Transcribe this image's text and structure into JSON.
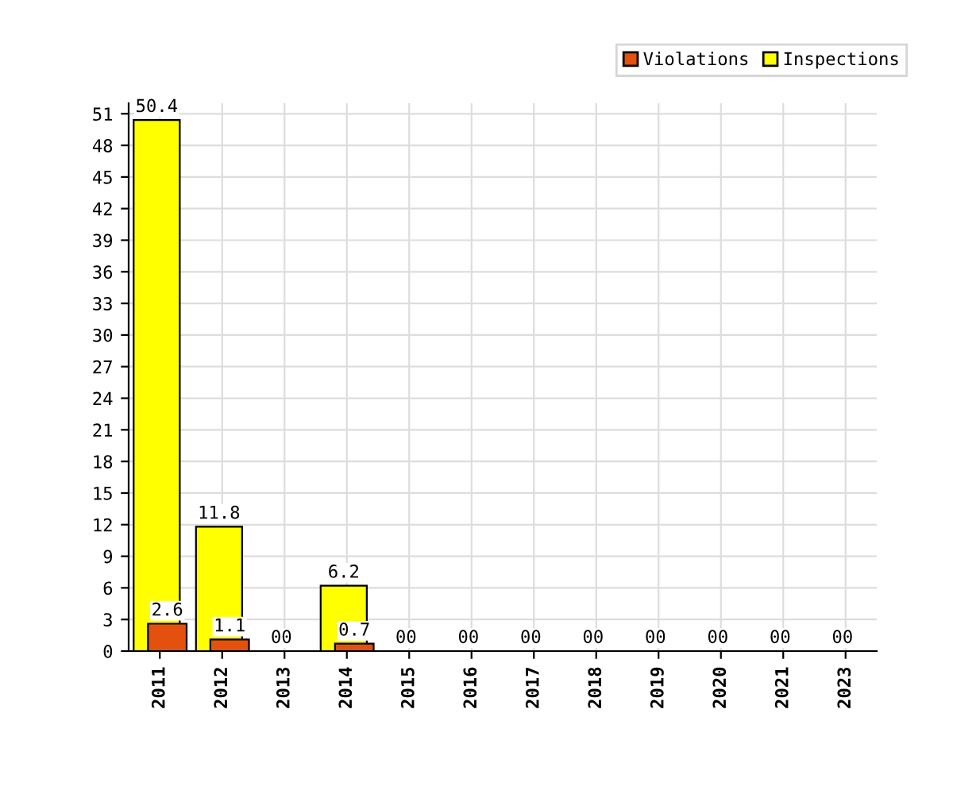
{
  "chart_data": {
    "type": "bar",
    "categories": [
      "2011",
      "2012",
      "2013",
      "2014",
      "2015",
      "2016",
      "2017",
      "2018",
      "2019",
      "2020",
      "2021",
      "2023"
    ],
    "series": [
      {
        "name": "Violations",
        "color": "#e4500e",
        "values": [
          2.6,
          1.1,
          0,
          0.7,
          0,
          0,
          0,
          0,
          0,
          0,
          0,
          0
        ],
        "value_labels": [
          "2.6",
          "1.1",
          null,
          "0.7",
          null,
          null,
          null,
          null,
          null,
          null,
          null,
          null
        ]
      },
      {
        "name": "Inspections",
        "color": "#ffff00",
        "values": [
          50.4,
          11.8,
          0,
          6.2,
          0,
          0,
          0,
          0,
          0,
          0,
          0,
          0
        ],
        "value_labels": [
          "50.4",
          "11.8",
          "00",
          "6.2",
          "00",
          "00",
          "00",
          "00",
          "00",
          "00",
          "00",
          "00"
        ]
      }
    ],
    "ylim": [
      0,
      52
    ],
    "yticks": [
      0,
      3,
      6,
      9,
      12,
      15,
      18,
      21,
      24,
      27,
      30,
      33,
      36,
      39,
      42,
      45,
      48,
      51
    ],
    "grid": true,
    "legend": "top right"
  }
}
